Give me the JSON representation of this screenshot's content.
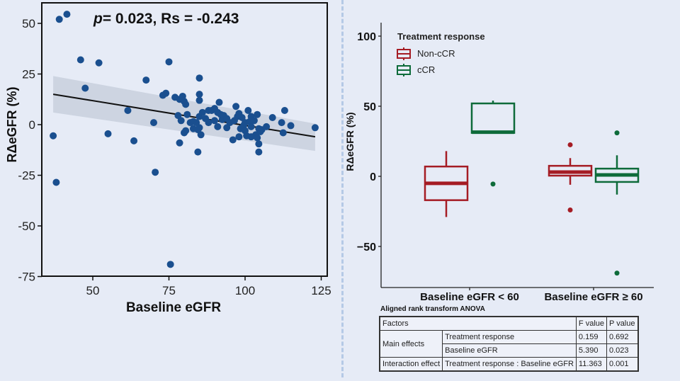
{
  "chart_data": [
    {
      "type": "scatter",
      "title": "",
      "annotation": "p= 0.023, Rs = -0.243",
      "annotation_p": "p",
      "annotation_rest": "= 0.023, Rs = -0.243",
      "xlabel": "Baseline eGFR",
      "ylabel": "RΔeGFR (%)",
      "xlim": [
        35,
        127
      ],
      "ylim": [
        -75,
        60
      ],
      "xticks": [
        50,
        75,
        100,
        125
      ],
      "yticks": [
        50,
        25,
        0,
        -25,
        -50,
        -75
      ],
      "point_color": "#1a4f8f",
      "regression": {
        "x": [
          37,
          123
        ],
        "y": [
          15,
          -6
        ],
        "ci_upper": [
          24,
          0.5
        ],
        "ci_lower": [
          6,
          -13
        ]
      },
      "points": [
        [
          39,
          52
        ],
        [
          41.5,
          54.5
        ],
        [
          46,
          32
        ],
        [
          52,
          30.5
        ],
        [
          47.5,
          18
        ],
        [
          37,
          -5.5
        ],
        [
          38,
          -28.5
        ],
        [
          55,
          -4.5
        ],
        [
          61.5,
          7
        ],
        [
          63.5,
          -8
        ],
        [
          67.5,
          22
        ],
        [
          70,
          1
        ],
        [
          70.5,
          -23.5
        ],
        [
          75.5,
          -69
        ],
        [
          73,
          14.5
        ],
        [
          74,
          15.5
        ],
        [
          75,
          31
        ],
        [
          77,
          13.5
        ],
        [
          78.5,
          12.5
        ],
        [
          80,
          11.5
        ],
        [
          79.5,
          14
        ],
        [
          80.5,
          10
        ],
        [
          78,
          4.5
        ],
        [
          79,
          2
        ],
        [
          80,
          -4
        ],
        [
          80.5,
          -3
        ],
        [
          78.5,
          -9
        ],
        [
          81,
          5
        ],
        [
          82,
          1
        ],
        [
          83,
          1.5
        ],
        [
          84,
          1
        ],
        [
          84.5,
          -2.5
        ],
        [
          85,
          23
        ],
        [
          85,
          15
        ],
        [
          85,
          12
        ],
        [
          85,
          -1.5
        ],
        [
          85.5,
          -5
        ],
        [
          84.5,
          -13.5
        ],
        [
          85,
          4
        ],
        [
          86,
          6
        ],
        [
          88,
          7
        ],
        [
          89,
          7
        ],
        [
          90,
          8
        ],
        [
          91,
          6
        ],
        [
          91.5,
          11
        ],
        [
          92,
          5
        ],
        [
          93,
          4
        ],
        [
          92.5,
          2.5
        ],
        [
          90,
          2
        ],
        [
          91,
          -1
        ],
        [
          93,
          4.5
        ],
        [
          94,
          3
        ],
        [
          95,
          1
        ],
        [
          97,
          9
        ],
        [
          97.5,
          4
        ],
        [
          98,
          5.5
        ],
        [
          99,
          3.5
        ],
        [
          98.5,
          -2
        ],
        [
          99.5,
          -0.5
        ],
        [
          100,
          1
        ],
        [
          101,
          7
        ],
        [
          102,
          4
        ],
        [
          101.5,
          1.5
        ],
        [
          102,
          -1
        ],
        [
          103,
          2
        ],
        [
          104,
          5
        ],
        [
          104.5,
          -2
        ],
        [
          105,
          -3.5
        ],
        [
          103.5,
          -5
        ],
        [
          102,
          -6
        ],
        [
          100.5,
          -5.5
        ],
        [
          98,
          -6
        ],
        [
          96,
          -7.5
        ],
        [
          104,
          -6.5
        ],
        [
          104.5,
          -9.5
        ],
        [
          104.5,
          -13.5
        ],
        [
          105.5,
          -2.5
        ],
        [
          107,
          -1
        ],
        [
          109,
          3.5
        ],
        [
          112,
          1
        ],
        [
          112.5,
          -4
        ],
        [
          113,
          7
        ],
        [
          115,
          -0.5
        ],
        [
          123,
          -1.5
        ],
        [
          100,
          -3
        ],
        [
          96.5,
          2
        ],
        [
          94,
          -1.5
        ],
        [
          88,
          1
        ],
        [
          87,
          3
        ],
        [
          83,
          -2
        ]
      ]
    },
    {
      "type": "box",
      "xlabel": "",
      "ylabel": "RΔeGFR (%)",
      "ylim": [
        -78,
        110
      ],
      "yticks": [
        100,
        50,
        0,
        -50
      ],
      "categories": [
        "Baseline eGFR < 60",
        "Baseline eGFR ≥ 60"
      ],
      "legend": {
        "title": "Treatment response",
        "position": "top-left"
      },
      "series": [
        {
          "name": "Non-cCR",
          "color": "#a51c24",
          "boxes": [
            {
              "q1": -17,
              "median": -5,
              "q3": 7,
              "whisker_low": -29,
              "whisker_high": 18,
              "outliers": []
            },
            {
              "q1": 0.5,
              "median": 3,
              "q3": 7.5,
              "whisker_low": -6,
              "whisker_high": 13,
              "outliers": [
                22.5,
                -24
              ]
            }
          ]
        },
        {
          "name": "cCR",
          "color": "#0e6b3a",
          "boxes": [
            {
              "q1": 31,
              "median": 31.5,
              "q3": 52,
              "whisker_low": 31,
              "whisker_high": 54,
              "outliers": [
                -5.5
              ]
            },
            {
              "q1": -4,
              "median": 1,
              "q3": 5.5,
              "whisker_low": -13,
              "whisker_high": 15,
              "outliers": [
                31,
                -69
              ]
            }
          ]
        }
      ]
    }
  ],
  "anova": {
    "title": "Aligned rank transform ANOVA",
    "header": {
      "factors": "Factors",
      "f": "F value",
      "p": "P value"
    },
    "main_effects_label": "Main effects",
    "interaction_label": "Interaction effect",
    "rows": [
      {
        "factor": "Treatment response",
        "f": "0.159",
        "p": "0.692"
      },
      {
        "factor": "Baseline eGFR",
        "f": "5.390",
        "p": "0.023"
      },
      {
        "factor": "Treatment response : Baseline eGFR",
        "f": "11.363",
        "p": "0.001"
      }
    ]
  }
}
